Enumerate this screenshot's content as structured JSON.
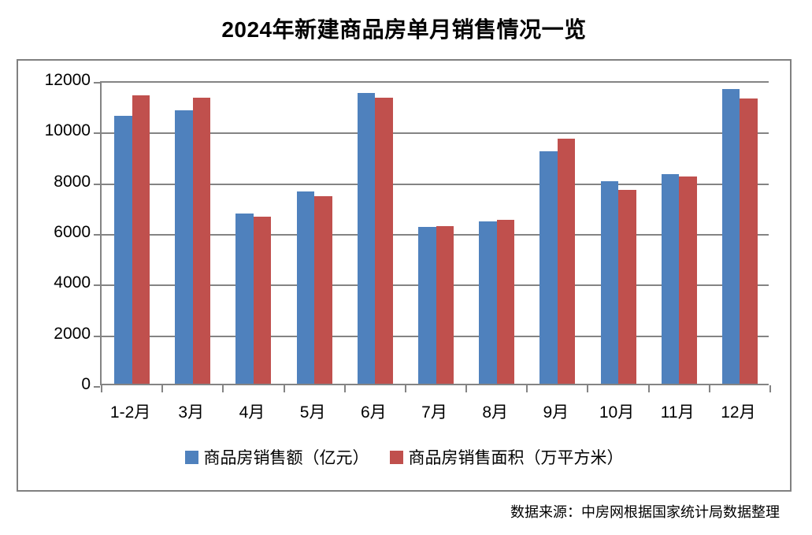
{
  "title": "2024年新建商品房单月销售情况一览",
  "source_note": "数据来源：中房网根据国家统计局数据整理",
  "colors": {
    "series_amount": "#4F81BD",
    "series_area": "#C0504D",
    "gridline": "#848484",
    "frame_border": "#808080",
    "title_text": "#000000",
    "label_text": "#000000",
    "background": "#FFFFFF"
  },
  "chart_data": {
    "type": "bar",
    "title": "2024年新建商品房单月销售情况一览",
    "categories": [
      "1-2月",
      "3月",
      "4月",
      "5月",
      "6月",
      "7月",
      "8月",
      "9月",
      "10月",
      "11月",
      "12月"
    ],
    "series": [
      {
        "name": "商品房销售额（亿元）",
        "color": "#4F81BD",
        "values": [
          10566,
          10789,
          6712,
          7598,
          11468,
          6197,
          6393,
          9157,
          7975,
          8270,
          11625
        ]
      },
      {
        "name": "商品房销售面积（万平方米）",
        "color": "#C0504D",
        "values": [
          11369,
          11299,
          6584,
          7390,
          11274,
          6233,
          6453,
          9682,
          7646,
          8188,
          11267
        ]
      }
    ],
    "xlabel": "",
    "ylabel": "",
    "ylim": [
      0,
      12000
    ],
    "ytick_step": 2000,
    "yticks": [
      "0",
      "2000",
      "4000",
      "6000",
      "8000",
      "10000",
      "12000"
    ],
    "grid": true,
    "legend_position": "bottom"
  }
}
